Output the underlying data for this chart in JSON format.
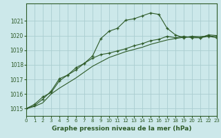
{
  "title": "Graphe pression niveau de la mer (hPa)",
  "bg_color": "#cce8ea",
  "grid_color": "#aacdd0",
  "line_color": "#2d5a27",
  "xlim": [
    0,
    23
  ],
  "ylim": [
    1014.5,
    1022.2
  ],
  "xticks": [
    0,
    1,
    2,
    3,
    4,
    5,
    6,
    7,
    8,
    9,
    10,
    11,
    12,
    13,
    14,
    15,
    16,
    17,
    18,
    19,
    20,
    21,
    22,
    23
  ],
  "yticks": [
    1015,
    1016,
    1017,
    1018,
    1019,
    1020,
    1021
  ],
  "series": [
    {
      "x": [
        0,
        1,
        2,
        3,
        4,
        5,
        6,
        7,
        8,
        9,
        10,
        11,
        12,
        13,
        14,
        15,
        16,
        17,
        18,
        19,
        20,
        21,
        22,
        23
      ],
      "y": [
        1015.0,
        1015.3,
        1015.8,
        1016.1,
        1016.9,
        1017.3,
        1017.8,
        1018.1,
        1018.6,
        1019.8,
        1020.3,
        1020.5,
        1021.05,
        1021.15,
        1021.35,
        1021.55,
        1021.45,
        1020.5,
        1020.05,
        1019.85,
        1019.95,
        1019.85,
        1020.05,
        1020.0
      ],
      "marker": "+"
    },
    {
      "x": [
        0,
        1,
        2,
        3,
        4,
        5,
        6,
        7,
        8,
        9,
        10,
        11,
        12,
        13,
        14,
        15,
        16,
        17,
        18,
        19,
        20,
        21,
        22,
        23
      ],
      "y": [
        1015.0,
        1015.2,
        1015.65,
        1016.2,
        1017.05,
        1017.3,
        1017.65,
        1018.1,
        1018.45,
        1018.7,
        1018.8,
        1018.95,
        1019.1,
        1019.3,
        1019.45,
        1019.65,
        1019.75,
        1019.95,
        1019.85,
        1019.95,
        1019.85,
        1019.85,
        1019.95,
        1019.85
      ],
      "marker": "+"
    },
    {
      "x": [
        0,
        1,
        2,
        3,
        4,
        5,
        6,
        7,
        8,
        9,
        10,
        11,
        12,
        13,
        14,
        15,
        16,
        17,
        18,
        19,
        20,
        21,
        22,
        23
      ],
      "y": [
        1015.0,
        1015.15,
        1015.4,
        1016.0,
        1016.4,
        1016.75,
        1017.1,
        1017.5,
        1017.9,
        1018.2,
        1018.5,
        1018.7,
        1018.9,
        1019.05,
        1019.2,
        1019.4,
        1019.55,
        1019.7,
        1019.8,
        1019.88,
        1019.93,
        1019.93,
        1019.98,
        1019.93
      ],
      "marker": null
    }
  ]
}
